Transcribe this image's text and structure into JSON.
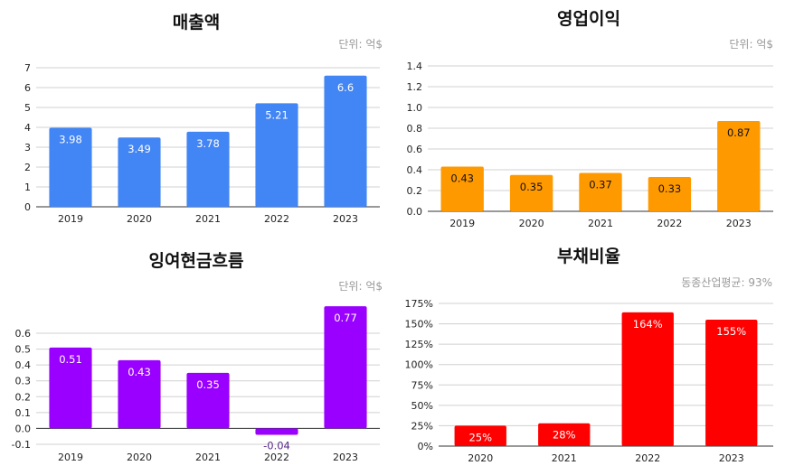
{
  "chart_data": [
    {
      "type": "bar",
      "title": "매출액",
      "annotation": "단위: 억$",
      "categories": [
        "2019",
        "2020",
        "2021",
        "2022",
        "2023"
      ],
      "values": [
        3.98,
        3.49,
        3.78,
        5.21,
        6.6
      ],
      "data_labels": [
        "3.98",
        "3.49",
        "3.78",
        "5.21",
        "6.6"
      ],
      "ylim": [
        0,
        7
      ],
      "yticks": [
        "0",
        "1",
        "2",
        "3",
        "4",
        "5",
        "6",
        "7"
      ],
      "ytick_values": [
        0,
        1,
        2,
        3,
        4,
        5,
        6,
        7
      ],
      "color": "#4285f4",
      "label_color": "#ffffff",
      "grid": true
    },
    {
      "type": "bar",
      "title": "영업이익",
      "annotation": "단위: 억$",
      "categories": [
        "2019",
        "2020",
        "2021",
        "2022",
        "2023"
      ],
      "values": [
        0.43,
        0.35,
        0.37,
        0.33,
        0.87
      ],
      "data_labels": [
        "0.43",
        "0.35",
        "0.37",
        "0.33",
        "0.87"
      ],
      "ylim": [
        0,
        1.4
      ],
      "yticks": [
        "0.0",
        "0.2",
        "0.4",
        "0.6",
        "0.8",
        "1.0",
        "1.2",
        "1.4"
      ],
      "ytick_values": [
        0,
        0.2,
        0.4,
        0.6,
        0.8,
        1.0,
        1.2,
        1.4
      ],
      "color": "#ff9900",
      "label_color": "#111111",
      "grid": true
    },
    {
      "type": "bar",
      "title": "잉여현금흐름",
      "annotation": "단위: 억$",
      "categories": [
        "2019",
        "2020",
        "2021",
        "2022",
        "2023"
      ],
      "values": [
        0.51,
        0.43,
        0.35,
        -0.04,
        0.77
      ],
      "data_labels": [
        "0.51",
        "0.43",
        "0.35",
        "-0.04",
        "0.77"
      ],
      "ylim": [
        -0.1,
        0.6
      ],
      "yticks": [
        "-0.1",
        "0.0",
        "0.1",
        "0.2",
        "0.3",
        "0.4",
        "0.5",
        "0.6"
      ],
      "ytick_values": [
        -0.1,
        0,
        0.1,
        0.2,
        0.3,
        0.4,
        0.5,
        0.6
      ],
      "color": "#9900ff",
      "label_color": "#ffffff",
      "grid": true
    },
    {
      "type": "bar",
      "title": "부채비율",
      "annotation": "동종산업평균:  93%",
      "categories": [
        "2020",
        "2021",
        "2022",
        "2023"
      ],
      "values": [
        25,
        28,
        164,
        155
      ],
      "data_labels": [
        "25%",
        "28%",
        "164%",
        "155%"
      ],
      "ylim": [
        0,
        175
      ],
      "yticks": [
        "0%",
        "25%",
        "50%",
        "75%",
        "100%",
        "125%",
        "150%",
        "175%"
      ],
      "ytick_values": [
        0,
        25,
        50,
        75,
        100,
        125,
        150,
        175
      ],
      "color": "#ff0000",
      "label_color": "#ffffff",
      "grid": true
    }
  ]
}
